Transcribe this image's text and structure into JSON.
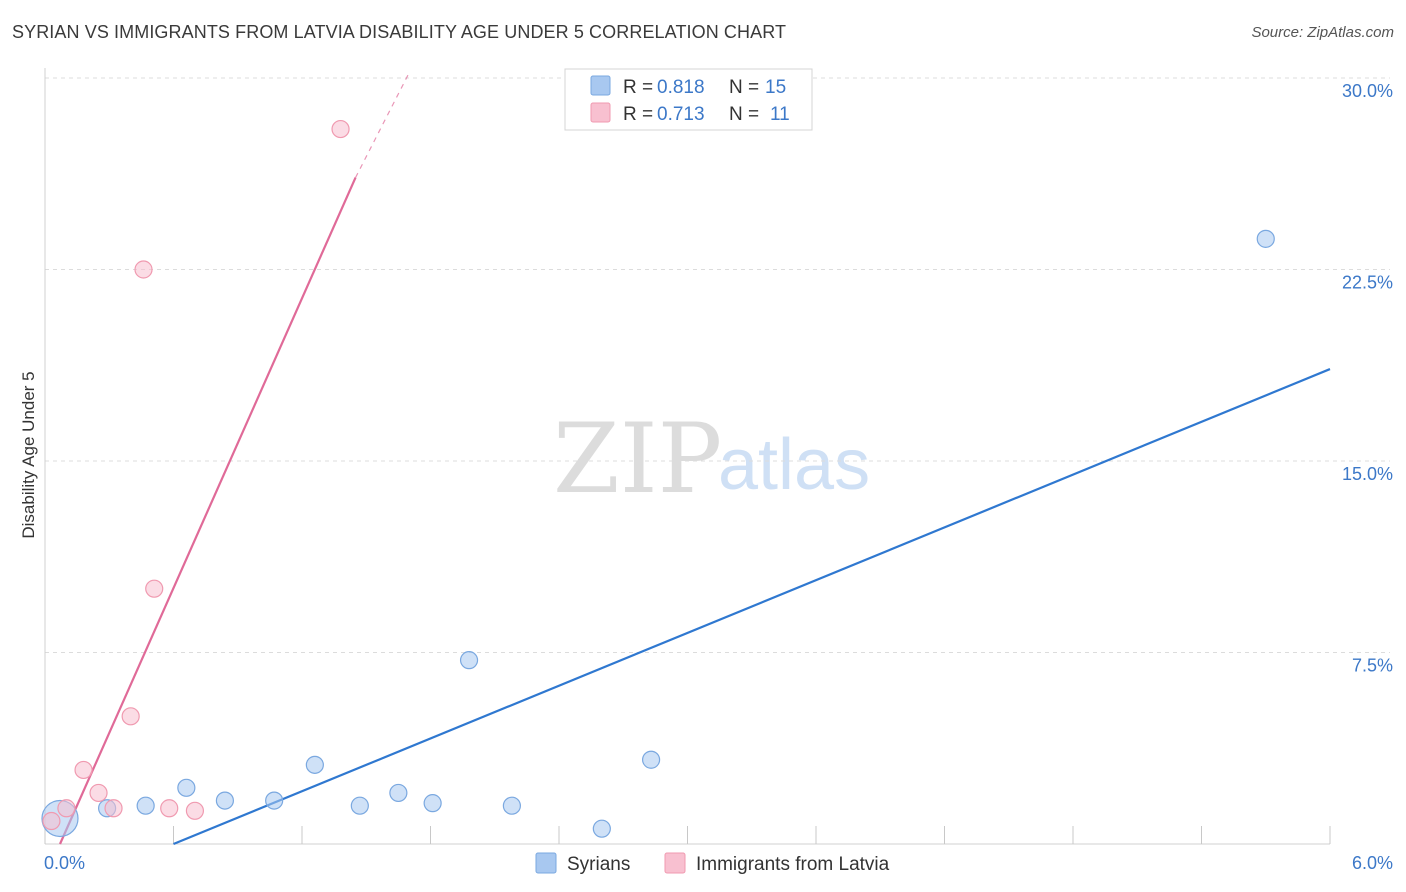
{
  "title": "SYRIAN VS IMMIGRANTS FROM LATVIA DISABILITY AGE UNDER 5 CORRELATION CHART",
  "source": "Source: ZipAtlas.com",
  "watermark": {
    "zip": "ZIP",
    "atlas": "atlas"
  },
  "chart_data": {
    "type": "scatter",
    "title": "SYRIAN VS IMMIGRANTS FROM LATVIA DISABILITY AGE UNDER 5 CORRELATION CHART",
    "xlabel": "",
    "ylabel": "Disability Age Under 5",
    "xlim": [
      0,
      6.0
    ],
    "ylim": [
      0,
      30.0
    ],
    "x_tick_labels": [
      "0.0%",
      "6.0%"
    ],
    "y_ticks": [
      7.5,
      15.0,
      22.5,
      30.0
    ],
    "y_tick_labels": [
      "7.5%",
      "15.0%",
      "22.5%",
      "30.0%"
    ],
    "grid": true,
    "legend_position": "top-center",
    "series": [
      {
        "name": "Syrians",
        "color": "#a8c8f0",
        "stroke": "#7aa8e0",
        "line_color": "#2f78d0",
        "R": "0.818",
        "N": "15",
        "points": [
          {
            "x": 0.07,
            "y": 1.0,
            "big": true
          },
          {
            "x": 0.29,
            "y": 1.4
          },
          {
            "x": 0.47,
            "y": 1.5
          },
          {
            "x": 0.66,
            "y": 2.2
          },
          {
            "x": 0.84,
            "y": 1.7
          },
          {
            "x": 1.07,
            "y": 1.7
          },
          {
            "x": 1.26,
            "y": 3.1
          },
          {
            "x": 1.47,
            "y": 1.5
          },
          {
            "x": 1.65,
            "y": 2.0
          },
          {
            "x": 1.81,
            "y": 1.6
          },
          {
            "x": 1.98,
            "y": 7.2
          },
          {
            "x": 2.18,
            "y": 1.5
          },
          {
            "x": 2.6,
            "y": 0.6
          },
          {
            "x": 2.83,
            "y": 3.3
          },
          {
            "x": 5.7,
            "y": 23.7
          }
        ],
        "trend": {
          "x0": 0.6,
          "y0": 0.0,
          "x1": 6.0,
          "y1": 18.6
        }
      },
      {
        "name": "Immigrants from Latvia",
        "color": "#f8c0d0",
        "stroke": "#f09ab0",
        "line_color": "#e06a98",
        "R": "0.713",
        "N": "11",
        "points": [
          {
            "x": 0.03,
            "y": 0.9
          },
          {
            "x": 0.1,
            "y": 1.4
          },
          {
            "x": 0.18,
            "y": 2.9
          },
          {
            "x": 0.25,
            "y": 2.0
          },
          {
            "x": 0.32,
            "y": 1.4
          },
          {
            "x": 0.4,
            "y": 5.0
          },
          {
            "x": 0.46,
            "y": 22.5
          },
          {
            "x": 0.51,
            "y": 10.0
          },
          {
            "x": 0.58,
            "y": 1.4
          },
          {
            "x": 0.7,
            "y": 1.3
          },
          {
            "x": 1.38,
            "y": 28.0
          }
        ],
        "trend": {
          "x0": 0.07,
          "y0": 0.0,
          "x1": 1.45,
          "y1": 26.1
        },
        "trend_dashed": {
          "x0": 1.45,
          "y0": 26.1,
          "x1": 1.7,
          "y1": 30.2
        }
      }
    ]
  },
  "legend": {
    "r_label": "R =",
    "n_label": "N ="
  }
}
